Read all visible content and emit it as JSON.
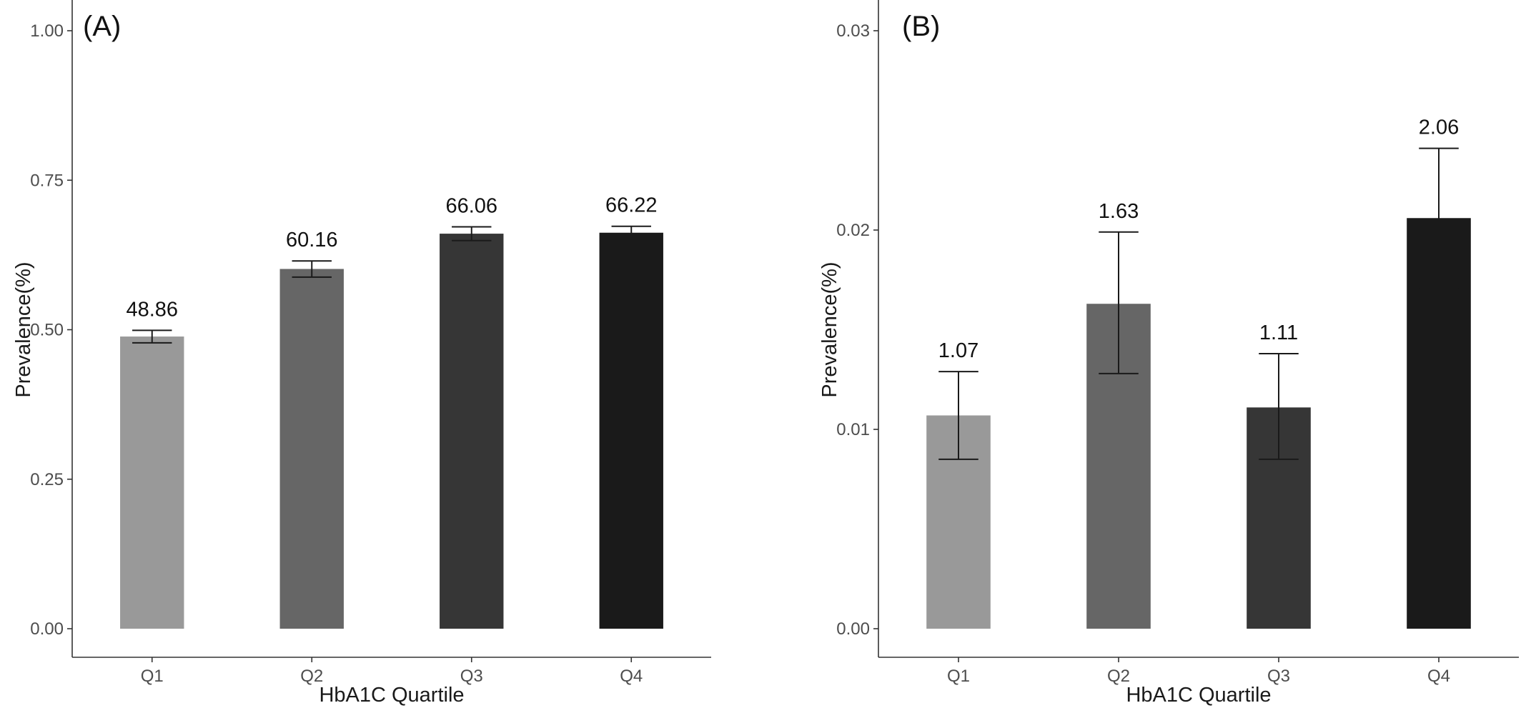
{
  "chart_data": [
    {
      "type": "bar",
      "panel_label": "(A)",
      "categories": [
        "Q1",
        "Q2",
        "Q3",
        "Q4"
      ],
      "values": [
        0.4886,
        0.6016,
        0.6606,
        0.6622
      ],
      "error_low": [
        0.478,
        0.588,
        0.649,
        0.652
      ],
      "error_high": [
        0.499,
        0.615,
        0.672,
        0.673
      ],
      "data_labels": [
        "48.86",
        "60.16",
        "66.06",
        "66.22"
      ],
      "bar_colors": [
        "#999999",
        "#666666",
        "#363636",
        "#1a1a1a"
      ],
      "xlabel": "HbA1C Quartile",
      "ylabel": "Prevalence(%)",
      "ylim": [
        0,
        1.0
      ],
      "yticks": [
        "0.00",
        "0.25",
        "0.50",
        "0.75",
        "1.00"
      ],
      "ytick_values": [
        0,
        0.25,
        0.5,
        0.75,
        1.0
      ],
      "grid": false
    },
    {
      "type": "bar",
      "panel_label": "(B)",
      "categories": [
        "Q1",
        "Q2",
        "Q3",
        "Q4"
      ],
      "values": [
        0.0107,
        0.0163,
        0.0111,
        0.0206
      ],
      "error_low": [
        0.0085,
        0.0128,
        0.0085,
        0.0171
      ],
      "error_high": [
        0.0129,
        0.0199,
        0.0138,
        0.0241
      ],
      "data_labels": [
        "1.07",
        "1.63",
        "1.11",
        "2.06"
      ],
      "bar_colors": [
        "#999999",
        "#666666",
        "#363636",
        "#1a1a1a"
      ],
      "xlabel": "HbA1C Quartile",
      "ylabel": "Prevalence(%)",
      "ylim": [
        0,
        0.03
      ],
      "yticks": [
        "0.00",
        "0.01",
        "0.02",
        "0.03"
      ],
      "ytick_values": [
        0,
        0.01,
        0.02,
        0.03
      ],
      "grid": false
    }
  ]
}
